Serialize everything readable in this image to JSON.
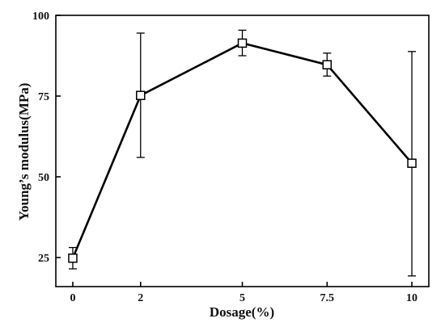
{
  "chart_data": {
    "type": "line",
    "title": "",
    "xlabel": "Dosage(%)",
    "ylabel": "Young’s modulus(MPa)",
    "x": [
      0,
      2,
      5,
      7.5,
      10
    ],
    "x_ticks": [
      "0",
      "2",
      "5",
      "7.5",
      "10"
    ],
    "y_ticks": [
      "25",
      "50",
      "75",
      "100"
    ],
    "xlim": [
      -0.5,
      10.5
    ],
    "ylim": [
      16,
      100
    ],
    "grid": false,
    "legend": "none",
    "series": [
      {
        "values": [
          24.8,
          75.2,
          91.4,
          84.7,
          54.2
        ],
        "err_low": [
          21.5,
          56,
          87.5,
          81.2,
          19.3
        ],
        "err_high": [
          28.1,
          94.5,
          95.4,
          88.3,
          88.8
        ],
        "marker": "open-square",
        "color": "#000000"
      }
    ]
  }
}
